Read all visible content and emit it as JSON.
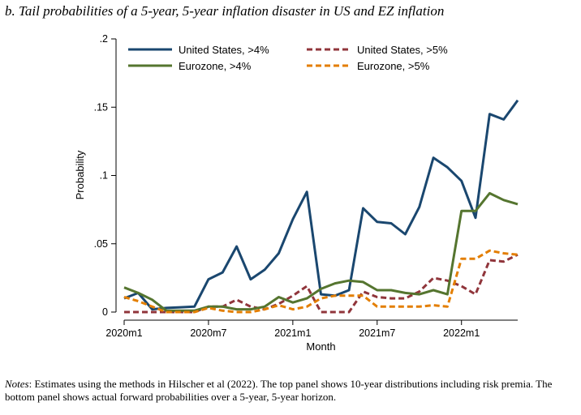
{
  "title": "b. Tail probabilities of a 5-year, 5-year inflation disaster in US and EZ inflation",
  "notes": {
    "label": "Notes",
    "text": ": Estimates using the methods in Hilscher et al (2022). The top panel shows 10-year distributions including risk premia. The bottom panel shows actual forward probabilities over a 5-year, 5-year horizon."
  },
  "chart_data": {
    "type": "line",
    "xlabel": "Month",
    "ylabel": "Probability",
    "ylim": [
      0,
      0.2
    ],
    "yticks": [
      0,
      0.05,
      0.1,
      0.15,
      0.2
    ],
    "ytick_labels": [
      "0",
      ".05",
      ".1",
      ".15",
      ".2"
    ],
    "xtick_labels": [
      "2020m1",
      "2020m7",
      "2021m1",
      "2021m7",
      "2022m1"
    ],
    "xtick_index": [
      0,
      6,
      12,
      18,
      24
    ],
    "x": [
      "2020m1",
      "2020m2",
      "2020m3",
      "2020m4",
      "2020m5",
      "2020m6",
      "2020m7",
      "2020m8",
      "2020m9",
      "2020m10",
      "2020m11",
      "2020m12",
      "2021m1",
      "2021m2",
      "2021m3",
      "2021m4",
      "2021m5",
      "2021m6",
      "2021m7",
      "2021m8",
      "2021m9",
      "2021m10",
      "2021m11",
      "2021m12",
      "2022m1",
      "2022m2",
      "2022m3",
      "2022m4",
      "2022m5"
    ],
    "legend_position": "top",
    "grid": false,
    "series": [
      {
        "name": "United States, >4%",
        "color": "#1a476f",
        "dash": "solid",
        "values": [
          0.01,
          0.014,
          0.002,
          0.003,
          0.0035,
          0.004,
          0.024,
          0.029,
          0.048,
          0.024,
          0.031,
          0.043,
          0.068,
          0.088,
          0.013,
          0.012,
          0.016,
          0.076,
          0.066,
          0.065,
          0.057,
          0.077,
          0.113,
          0.106,
          0.096,
          0.069,
          0.145,
          0.141,
          0.155
        ]
      },
      {
        "name": "United States, >5%",
        "color": "#90353b",
        "dash": "dashed",
        "values": [
          0.0,
          0.0,
          0.0,
          0.0,
          0.0,
          0.0,
          0.004,
          0.004,
          0.009,
          0.004,
          0.002,
          0.006,
          0.012,
          0.019,
          0.0,
          0.0,
          0.0,
          0.015,
          0.011,
          0.01,
          0.01,
          0.015,
          0.025,
          0.023,
          0.019,
          0.013,
          0.038,
          0.037,
          0.042
        ]
      },
      {
        "name": "Eurozone, >4%",
        "color": "#55752f",
        "dash": "solid",
        "values": [
          0.018,
          0.014,
          0.009,
          0.001,
          0.001,
          0.001,
          0.004,
          0.004,
          0.002,
          0.002,
          0.004,
          0.011,
          0.007,
          0.01,
          0.017,
          0.021,
          0.023,
          0.022,
          0.016,
          0.016,
          0.014,
          0.013,
          0.016,
          0.013,
          0.074,
          0.074,
          0.087,
          0.082,
          0.079
        ]
      },
      {
        "name": "Eurozone, >5%",
        "color": "#e37e00",
        "dash": "dashed",
        "values": [
          0.011,
          0.008,
          0.004,
          0.0,
          0.0,
          0.0,
          0.003,
          0.001,
          0.0,
          0.0,
          0.002,
          0.005,
          0.002,
          0.004,
          0.01,
          0.012,
          0.012,
          0.012,
          0.004,
          0.004,
          0.004,
          0.004,
          0.005,
          0.004,
          0.039,
          0.039,
          0.045,
          0.043,
          0.042
        ]
      }
    ]
  }
}
